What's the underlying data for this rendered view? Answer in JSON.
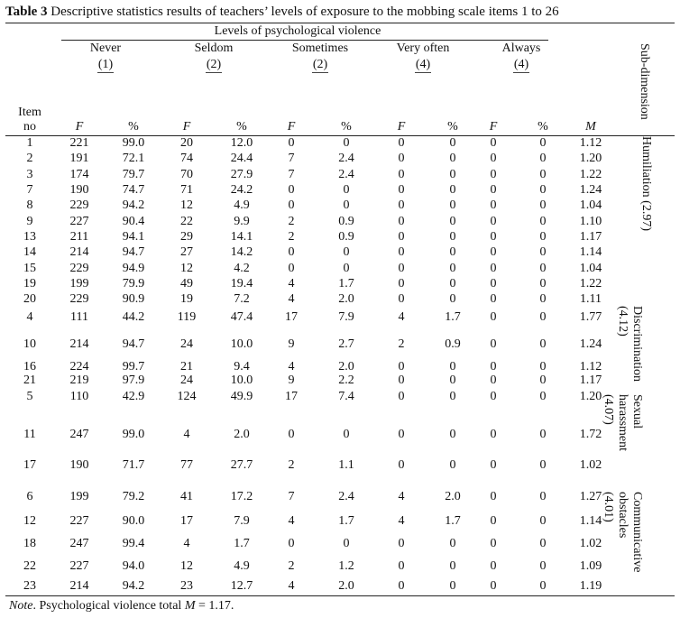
{
  "caption": {
    "label": "Table 3",
    "text": "Descriptive statistics results of teachers’ levels of exposure to the mobbing scale items 1 to 26"
  },
  "header": {
    "group_title": "Levels of psychological violence",
    "levels": [
      {
        "name": "Never",
        "code": "(1)"
      },
      {
        "name": "Seldom",
        "code": "(2)"
      },
      {
        "name": "Sometimes",
        "code": "(2)"
      },
      {
        "name": "Very often",
        "code": "(4)"
      },
      {
        "name": "Always",
        "code": "(4)"
      }
    ],
    "item_no_1": "Item",
    "item_no_2": "no",
    "f": "F",
    "pct": "%",
    "m": "M",
    "subdimension": "Sub-dimension"
  },
  "rows": [
    [
      "1",
      "221",
      "99.0",
      "20",
      "12.0",
      "0",
      "0",
      "0",
      "0",
      "0",
      "0",
      "1.12"
    ],
    [
      "2",
      "191",
      "72.1",
      "74",
      "24.4",
      "7",
      "2.4",
      "0",
      "0",
      "0",
      "0",
      "1.20"
    ],
    [
      "3",
      "174",
      "79.7",
      "70",
      "27.9",
      "7",
      "2.4",
      "0",
      "0",
      "0",
      "0",
      "1.22"
    ],
    [
      "7",
      "190",
      "74.7",
      "71",
      "24.2",
      "0",
      "0",
      "0",
      "0",
      "0",
      "0",
      "1.24"
    ],
    [
      "8",
      "229",
      "94.2",
      "12",
      "4.9",
      "0",
      "0",
      "0",
      "0",
      "0",
      "0",
      "1.04"
    ],
    [
      "9",
      "227",
      "90.4",
      "22",
      "9.9",
      "2",
      "0.9",
      "0",
      "0",
      "0",
      "0",
      "1.10"
    ],
    [
      "13",
      "211",
      "94.1",
      "29",
      "14.1",
      "2",
      "0.9",
      "0",
      "0",
      "0",
      "0",
      "1.17"
    ],
    [
      "14",
      "214",
      "94.7",
      "27",
      "14.2",
      "0",
      "0",
      "0",
      "0",
      "0",
      "0",
      "1.14"
    ],
    [
      "15",
      "229",
      "94.9",
      "12",
      "4.2",
      "0",
      "0",
      "0",
      "0",
      "0",
      "0",
      "1.04"
    ],
    [
      "19",
      "199",
      "79.9",
      "49",
      "19.4",
      "4",
      "1.7",
      "0",
      "0",
      "0",
      "0",
      "1.22"
    ],
    [
      "20",
      "229",
      "90.9",
      "19",
      "7.2",
      "4",
      "2.0",
      "0",
      "0",
      "0",
      "0",
      "1.11"
    ],
    [
      "4",
      "111",
      "44.2",
      "119",
      "47.4",
      "17",
      "7.9",
      "4",
      "1.7",
      "0",
      "0",
      "1.77"
    ],
    [
      "10",
      "214",
      "94.7",
      "24",
      "10.0",
      "9",
      "2.7",
      "2",
      "0.9",
      "0",
      "0",
      "1.24"
    ],
    [
      "16",
      "224",
      "99.7",
      "21",
      "9.4",
      "4",
      "2.0",
      "0",
      "0",
      "0",
      "0",
      "1.12"
    ],
    [
      "21",
      "219",
      "97.9",
      "24",
      "10.0",
      "9",
      "2.2",
      "0",
      "0",
      "0",
      "0",
      "1.17"
    ],
    [
      "5",
      "110",
      "42.9",
      "124",
      "49.9",
      "17",
      "7.4",
      "0",
      "0",
      "0",
      "0",
      "1.20"
    ],
    [
      "11",
      "247",
      "99.0",
      "4",
      "2.0",
      "0",
      "0",
      "0",
      "0",
      "0",
      "0",
      "1.72"
    ],
    [
      "17",
      "190",
      "71.7",
      "77",
      "27.7",
      "2",
      "1.1",
      "0",
      "0",
      "0",
      "0",
      "1.02"
    ],
    [
      "6",
      "199",
      "79.2",
      "41",
      "17.2",
      "7",
      "2.4",
      "4",
      "2.0",
      "0",
      "0",
      "1.27"
    ],
    [
      "12",
      "227",
      "90.0",
      "17",
      "7.9",
      "4",
      "1.7",
      "4",
      "1.7",
      "0",
      "0",
      "1.14"
    ],
    [
      "18",
      "247",
      "99.4",
      "4",
      "1.7",
      "0",
      "0",
      "0",
      "0",
      "0",
      "0",
      "1.02"
    ],
    [
      "22",
      "227",
      "94.0",
      "12",
      "4.9",
      "2",
      "1.2",
      "0",
      "0",
      "0",
      "0",
      "1.09"
    ],
    [
      "23",
      "214",
      "94.2",
      "23",
      "12.7",
      "4",
      "2.0",
      "0",
      "0",
      "0",
      "0",
      "1.19"
    ]
  ],
  "subdimensions": [
    {
      "line1": "Humiliation (2.97)"
    },
    {
      "line1": "Discrimination",
      "line2": "(4.12)"
    },
    {
      "line1": "Sexual",
      "line2": "harassment",
      "line3": "(4.07)"
    },
    {
      "line1": "Communicative",
      "line2": "obstacles",
      "line3": "(4.01)"
    }
  ],
  "note": {
    "label": "Note",
    "text_before": ". Psychological violence total ",
    "m": "M",
    "text_after": " = 1.17."
  }
}
